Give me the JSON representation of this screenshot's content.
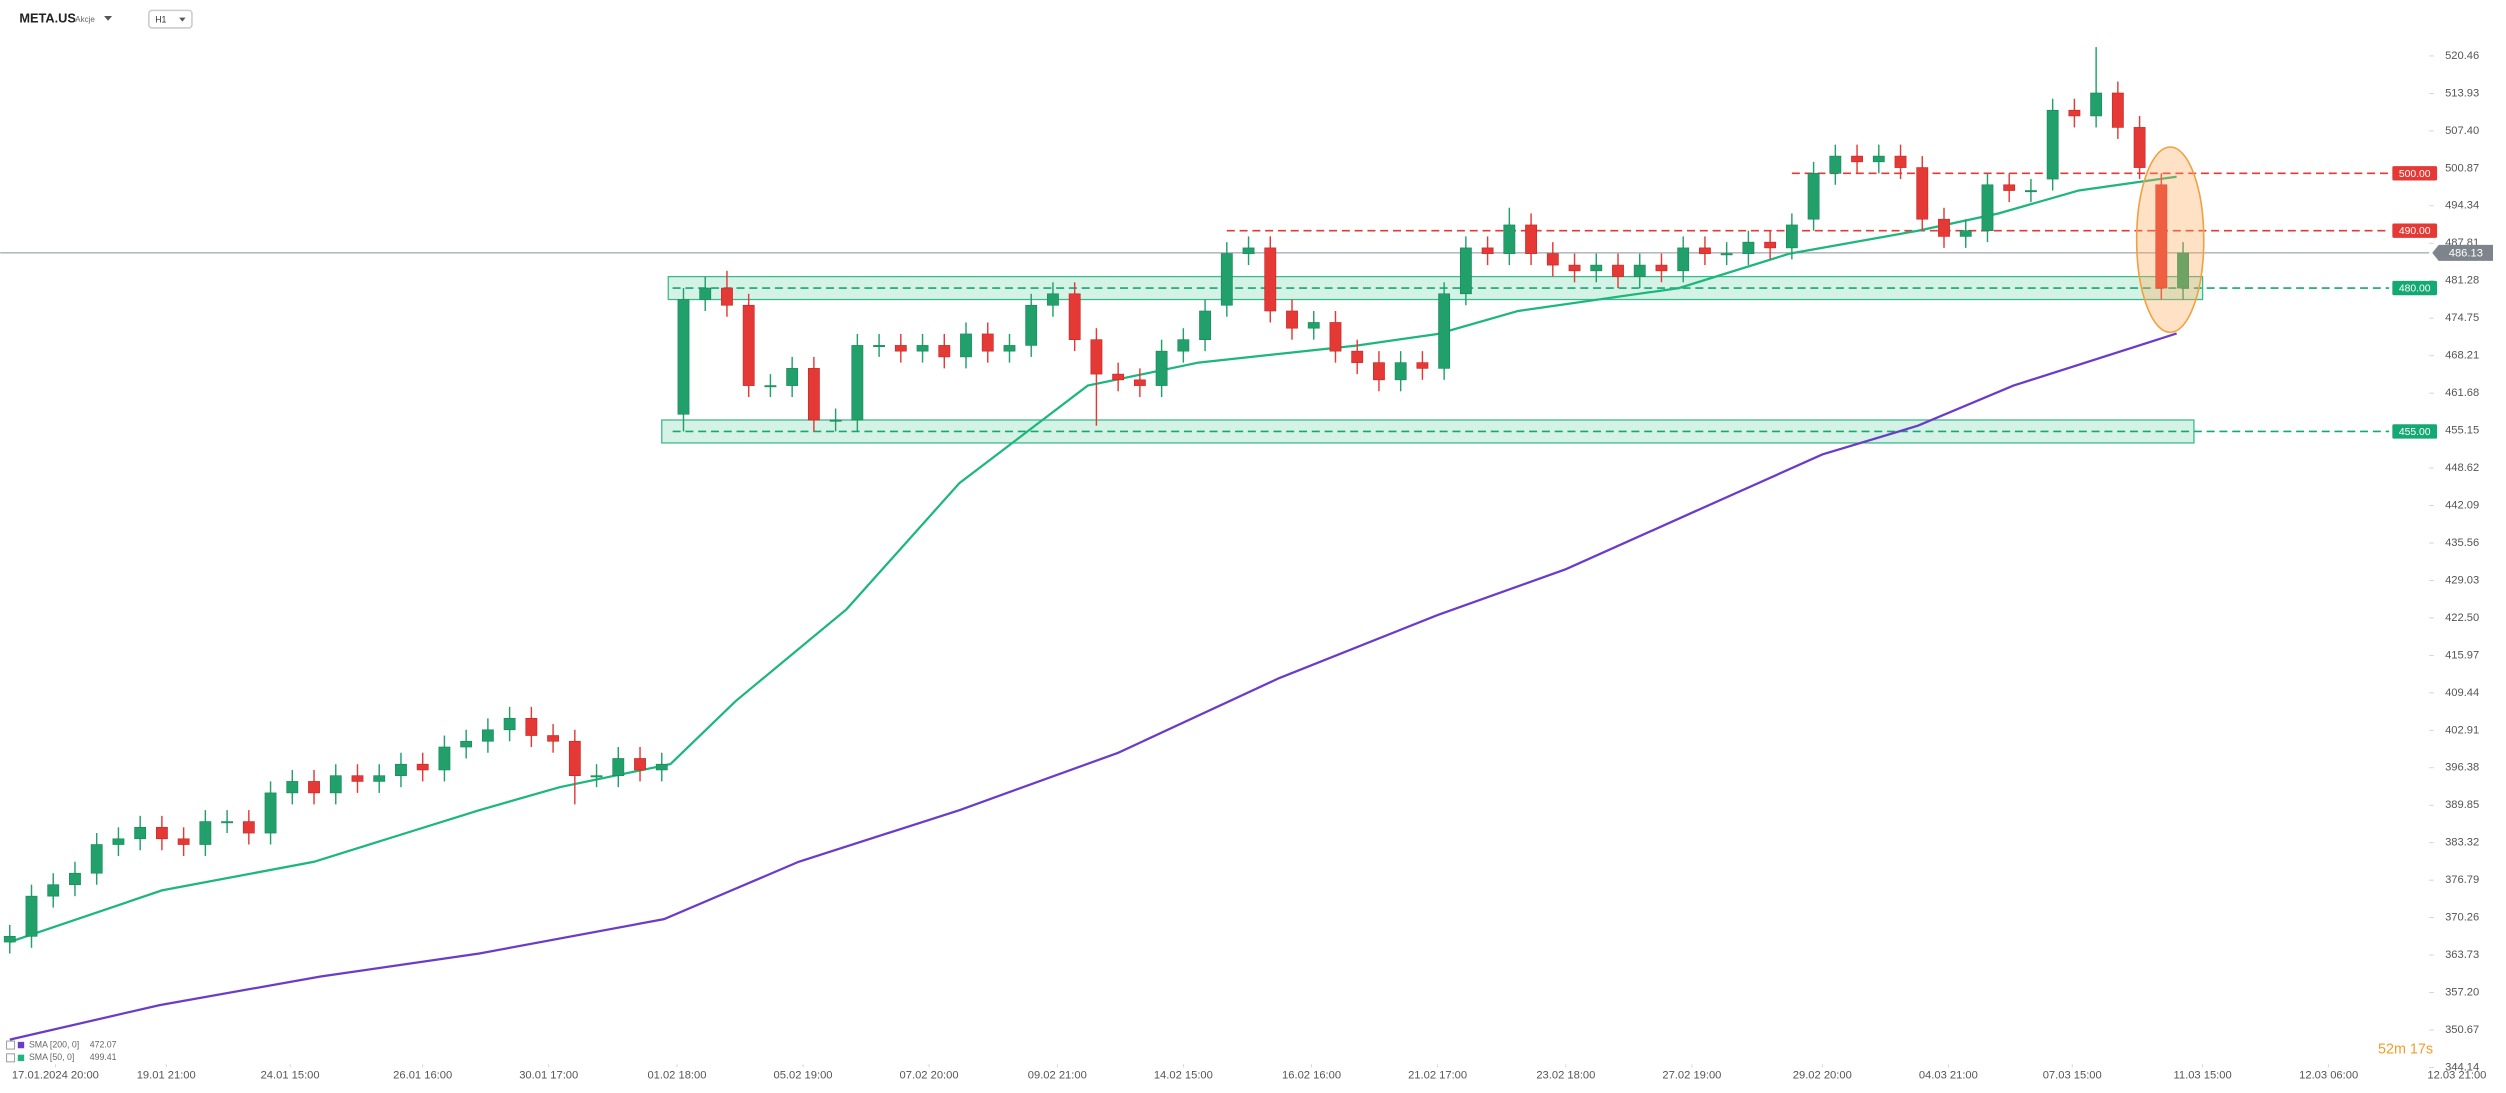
{
  "header": {
    "symbol": "META.US",
    "market": "Akcje",
    "timeframe": "H1"
  },
  "timer": "52m 17s",
  "chart_data": {
    "type": "candlestick",
    "grid": false,
    "up_color": "#22a06b",
    "down_color": "#e53935",
    "xlim": [
      -0.44,
      114.85
    ],
    "ylim": [
      345.26,
      530.21
    ],
    "xticks": [
      {
        "value": 2.1,
        "label": "17.01.2024 20:00"
      },
      {
        "value": 7.2,
        "label": "19.01 21:00"
      },
      {
        "value": 12.9,
        "label": "24.01 15:00"
      },
      {
        "value": 19,
        "label": "26.01 16:00"
      },
      {
        "value": 24.8,
        "label": "30.01 17:00"
      },
      {
        "value": 30.7,
        "label": "01.02 18:00"
      },
      {
        "value": 36.5,
        "label": "05.02 19:00"
      },
      {
        "value": 42.3,
        "label": "07.02 20:00"
      },
      {
        "value": 48.2,
        "label": "09.02 21:00"
      },
      {
        "value": 54,
        "label": "14.02 15:00"
      },
      {
        "value": 59.9,
        "label": "16.02 16:00"
      },
      {
        "value": 65.7,
        "label": "21.02 17:00"
      },
      {
        "value": 71.6,
        "label": "23.02 18:00"
      },
      {
        "value": 77.4,
        "label": "27.02 19:00"
      },
      {
        "value": 83.4,
        "label": "29.02 20:00"
      },
      {
        "value": 89.2,
        "label": "04.03 21:00"
      },
      {
        "value": 94.9,
        "label": "07.03 15:00"
      },
      {
        "value": 100.9,
        "label": "11.03 15:00"
      },
      {
        "value": 106.7,
        "label": "12.03 06:00"
      },
      {
        "value": 112.6,
        "label": "12.03 21:00"
      }
    ],
    "yticks": [
      520.46,
      513.93,
      {
        "value": 507.4,
        "label": "507.40"
      },
      500.87,
      494.34,
      487.81,
      481.28,
      474.75,
      468.21,
      461.68,
      455.15,
      448.62,
      442.09,
      435.56,
      429.03,
      {
        "value": 422.5,
        "label": "422.50"
      },
      415.97,
      409.44,
      402.91,
      396.38,
      389.85,
      383.32,
      376.79,
      370.26,
      363.73,
      {
        "value": 357.2,
        "label": "357.20"
      },
      350.67,
      344.14
    ],
    "open": [
      366,
      367,
      374,
      376,
      378,
      383,
      384,
      386,
      384,
      383,
      387,
      387,
      385,
      392,
      394,
      392,
      395,
      394,
      395,
      397,
      396,
      400,
      401,
      403,
      405,
      402,
      401,
      395,
      395,
      398,
      396,
      458,
      478,
      480,
      477,
      463,
      463,
      466,
      457,
      457,
      470,
      470,
      469,
      470,
      468,
      472,
      469,
      470,
      477,
      479,
      471,
      465,
      464,
      463,
      469,
      471,
      477,
      486,
      487,
      476,
      473,
      474,
      469,
      467,
      464,
      467,
      466,
      479,
      487,
      486,
      491,
      486,
      484,
      483,
      484,
      482,
      484,
      483,
      487,
      486,
      486,
      488,
      487,
      492,
      500,
      503,
      502,
      503,
      501,
      492,
      489,
      490,
      498,
      497,
      499,
      511,
      510,
      514,
      508,
      498,
      480
    ],
    "high": [
      369,
      376,
      378,
      380,
      385,
      386,
      388,
      388,
      386,
      389,
      389,
      389,
      394,
      396,
      396,
      397,
      397,
      397,
      399,
      399,
      402,
      403,
      405,
      407,
      407,
      404,
      403,
      397,
      400,
      400,
      399,
      480,
      482,
      483,
      479,
      465,
      468,
      468,
      459,
      472,
      472,
      472,
      472,
      472,
      474,
      474,
      472,
      479,
      481,
      481,
      473,
      467,
      466,
      471,
      473,
      478,
      488,
      489,
      489,
      478,
      476,
      476,
      471,
      469,
      469,
      469,
      481,
      489,
      489,
      494,
      493,
      488,
      486,
      486,
      486,
      486,
      486,
      489,
      489,
      488,
      490,
      490,
      493,
      502,
      505,
      505,
      505,
      505,
      503,
      494,
      492,
      500,
      500,
      499,
      513,
      513,
      522,
      516,
      510,
      500,
      488
    ],
    "low": [
      364,
      365,
      372,
      374,
      376,
      381,
      382,
      382,
      381,
      381,
      385,
      383,
      383,
      390,
      390,
      390,
      392,
      392,
      393,
      394,
      394,
      398,
      399,
      401,
      400,
      399,
      390,
      393,
      393,
      394,
      394,
      455,
      476,
      475,
      461,
      461,
      461,
      455,
      455,
      455,
      468,
      467,
      467,
      466,
      466,
      467,
      467,
      468,
      475,
      469,
      456,
      462,
      461,
      461,
      467,
      469,
      475,
      484,
      474,
      471,
      471,
      467,
      465,
      462,
      462,
      464,
      464,
      477,
      484,
      484,
      484,
      482,
      481,
      481,
      480,
      480,
      481,
      481,
      484,
      484,
      484,
      485,
      485,
      490,
      498,
      500,
      500,
      499,
      490,
      487,
      487,
      488,
      495,
      495,
      497,
      508,
      508,
      506,
      499,
      478,
      478
    ],
    "close": [
      367,
      374,
      376,
      378,
      383,
      384,
      386,
      384,
      383,
      387,
      387,
      385,
      392,
      394,
      392,
      395,
      394,
      395,
      397,
      396,
      400,
      401,
      403,
      405,
      402,
      401,
      395,
      395,
      398,
      396,
      397,
      478,
      480,
      477,
      463,
      463,
      466,
      457,
      457,
      470,
      470,
      469,
      470,
      468,
      472,
      469,
      470,
      477,
      479,
      471,
      465,
      464,
      463,
      469,
      471,
      476,
      486,
      487,
      476,
      473,
      474,
      469,
      467,
      464,
      467,
      466,
      479,
      487,
      486,
      491,
      486,
      484,
      483,
      484,
      482,
      484,
      483,
      487,
      486,
      486,
      488,
      487,
      491,
      500,
      503,
      502,
      503,
      501,
      492,
      489,
      490,
      498,
      497,
      497,
      511,
      510,
      514,
      508,
      501,
      480,
      486.13
    ],
    "series": [
      {
        "name": "SMA [200, 0]",
        "color": "#6a3cc8",
        "legend_value": 472.07,
        "x": [
          0,
          6.9,
          14.3,
          21.6,
          30.1,
          36.3,
          43.7,
          51,
          58.4,
          65.7,
          71.6,
          77.5,
          83.4,
          87.8,
          92.2,
          99.7
        ],
        "values": [
          349,
          355,
          360,
          364,
          370,
          380,
          389,
          399,
          412,
          423,
          431,
          441,
          451,
          456,
          463,
          472.07
        ]
      },
      {
        "name": "SMA [50, 0]",
        "color": "#1db67e",
        "legend_value": 499.41,
        "x": [
          0,
          7,
          14,
          21.6,
          25.3,
          30.4,
          33.4,
          38.5,
          43.7,
          49.6,
          54.7,
          62,
          65.7,
          69.4,
          76.8,
          81.9,
          87.8,
          91.5,
          95.2,
          98,
          99.7
        ],
        "values": [
          366,
          375,
          380,
          389,
          393,
          397,
          408,
          424,
          446,
          463,
          467,
          470,
          472,
          476,
          480,
          486,
          490,
          493,
          497,
          498.5,
          499.41
        ]
      }
    ],
    "levels": [
      {
        "value": 500,
        "label": "500.00",
        "color": "#e53935",
        "x_start": 82
      },
      {
        "value": 490,
        "label": "490.00",
        "color": "#e53935",
        "x_start": 56
      },
      {
        "value": 480,
        "label": "480.00",
        "color": "#14a874",
        "x_start": 30.5
      },
      {
        "value": 455,
        "label": "455.00",
        "color": "#14a874",
        "x_start": 30.5
      }
    ],
    "zones": [
      {
        "from": 478,
        "to": 482,
        "x_from": 30.3,
        "x_to": 100.9
      },
      {
        "from": 453,
        "to": 457,
        "x_from": 30,
        "x_to": 100.5
      }
    ],
    "last_price": 486.13
  }
}
